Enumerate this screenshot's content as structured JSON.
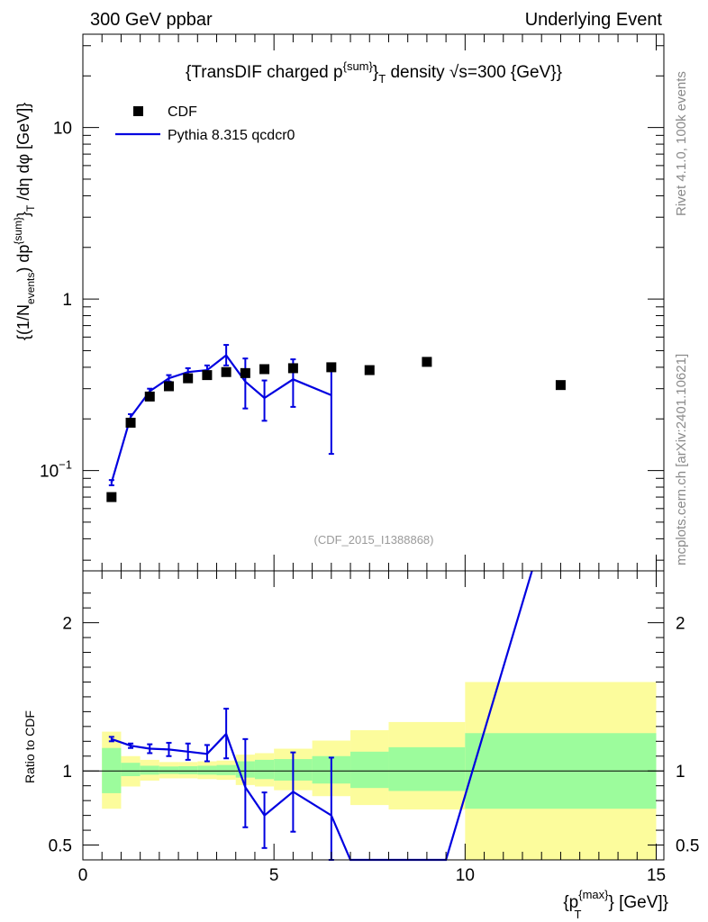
{
  "header": {
    "left": "300 GeV ppbar",
    "right": "Underlying Event"
  },
  "side_text": {
    "rivet": "Rivet 4.1.0,  100k events",
    "mcplots": "mcplots.cern.ch [arXiv:2401.10621]"
  },
  "chart_data": [
    {
      "type": "scatter",
      "title": "{TransDIF charged p^{sum}_T density √s=300 {GeV}}",
      "title_parts": {
        "pre": "{TransDIF charged p",
        "sup": "{sum}",
        "sub": "}",
        "subT": "T",
        "post": " density √s=300 {GeV}}"
      },
      "ylabel": "{(1/N_events) dp^{sum}_T /dη  dφ [GeV]}",
      "ylabel_parts": {
        "a": "{(1/N",
        "a_sub": "events",
        "b": ") dp",
        "b_sup": "{sum}",
        "c": "}",
        "c_sub": "T",
        "d": " /dη  dφ [GeV]}"
      },
      "watermark": "(CDF_2015_I1388868)",
      "yscale": "log",
      "ylim": [
        0.026,
        35
      ],
      "xlim": [
        0,
        15.2
      ],
      "y_tick_labels": [
        {
          "value": 0.1,
          "base": "10",
          "exp": "−1"
        },
        {
          "value": 1,
          "text": "1"
        },
        {
          "value": 10,
          "text": "10"
        }
      ],
      "legend": [
        {
          "label": "CDF",
          "marker": "square",
          "color": "#000000"
        },
        {
          "label": "Pythia 8.315 qcdcr0",
          "marker": "line",
          "color": "#0000e0"
        }
      ],
      "series": [
        {
          "name": "CDF",
          "color": "#000000",
          "x": [
            0.75,
            1.25,
            1.75,
            2.25,
            2.75,
            3.25,
            3.75,
            4.25,
            4.75,
            5.5,
            6.5,
            7.5,
            9.0,
            12.5
          ],
          "y": [
            0.07,
            0.19,
            0.27,
            0.31,
            0.345,
            0.36,
            0.375,
            0.37,
            0.39,
            0.395,
            0.4,
            0.385,
            0.43,
            0.315
          ]
        },
        {
          "name": "Pythia 8.315 qcdcr0",
          "color": "#0000e0",
          "x": [
            0.75,
            1.25,
            1.75,
            2.25,
            2.75,
            3.25,
            3.75,
            4.25,
            4.75,
            5.5,
            6.5
          ],
          "y": [
            0.085,
            0.205,
            0.29,
            0.345,
            0.375,
            0.385,
            0.47,
            0.33,
            0.265,
            0.34,
            0.275
          ],
          "err_low": [
            0.082,
            0.197,
            0.28,
            0.33,
            0.355,
            0.36,
            0.41,
            0.23,
            0.195,
            0.235,
            0.125
          ],
          "err_high": [
            0.088,
            0.213,
            0.3,
            0.36,
            0.395,
            0.41,
            0.54,
            0.45,
            0.335,
            0.445,
            0.41
          ]
        }
      ]
    },
    {
      "type": "line",
      "ylabel": "Ratio to CDF",
      "xlabel": "{p_T^{max}} [GeV]}",
      "xlabel_parts": {
        "a": "{p",
        "a_sup": "{max}",
        "a_sub": "T",
        "b": "} [GeV]}"
      },
      "xlim": [
        0,
        15.2
      ],
      "ylim": [
        0.4,
        2.35
      ],
      "x_ticks": [
        0,
        5,
        10,
        15
      ],
      "x_tick_labels": [
        "0",
        "5",
        "10",
        "15"
      ],
      "y_ticks": [
        0.5,
        1,
        2
      ],
      "y_tick_labels": [
        "0.5",
        "1",
        "2"
      ],
      "reference_line": 1,
      "bands": {
        "bins": [
          [
            0.5,
            1.0
          ],
          [
            1.0,
            1.5
          ],
          [
            1.5,
            2.0
          ],
          [
            2.0,
            2.5
          ],
          [
            2.5,
            3.0
          ],
          [
            3.0,
            3.5
          ],
          [
            3.5,
            4.0
          ],
          [
            4.0,
            4.5
          ],
          [
            4.5,
            5.0
          ],
          [
            5.0,
            6.0
          ],
          [
            6.0,
            7.0
          ],
          [
            7.0,
            8.0
          ],
          [
            8.0,
            10.0
          ],
          [
            10.0,
            15.0
          ]
        ],
        "inner_low": [
          0.85,
          0.965,
          0.975,
          0.98,
          0.978,
          0.975,
          0.972,
          0.955,
          0.945,
          0.935,
          0.915,
          0.885,
          0.865,
          0.745
        ],
        "inner_high": [
          1.155,
          1.055,
          1.035,
          1.03,
          1.032,
          1.035,
          1.04,
          1.065,
          1.075,
          1.08,
          1.1,
          1.13,
          1.16,
          1.255
        ],
        "outer_low": [
          0.745,
          0.895,
          0.935,
          0.95,
          0.95,
          0.945,
          0.94,
          0.905,
          0.895,
          0.87,
          0.83,
          0.77,
          0.74,
          0.335
        ],
        "outer_high": [
          1.265,
          1.1,
          1.075,
          1.06,
          1.06,
          1.065,
          1.07,
          1.11,
          1.12,
          1.15,
          1.205,
          1.275,
          1.33,
          1.6
        ],
        "inner_color": "#9cfc9c",
        "outer_color": "#fcfc9c"
      },
      "series": [
        {
          "name": "Pythia 8.315 qcdcr0 / CDF",
          "color": "#0000e0",
          "x": [
            0.75,
            1.25,
            1.75,
            2.25,
            2.75,
            3.25,
            3.75,
            4.25,
            4.75,
            5.5,
            6.5,
            7.0,
            9.5,
            11.75
          ],
          "y": [
            1.215,
            1.17,
            1.15,
            1.145,
            1.13,
            1.115,
            1.25,
            0.89,
            0.7,
            0.86,
            0.7,
            0.37,
            0.37,
            2.35
          ],
          "err_low": [
            1.2,
            1.155,
            1.12,
            1.1,
            1.075,
            1.065,
            1.085,
            0.62,
            0.48,
            0.59,
            0.3,
            null,
            null,
            null
          ],
          "err_high": [
            1.23,
            1.185,
            1.18,
            1.19,
            1.185,
            1.175,
            1.42,
            1.215,
            0.855,
            1.125,
            1.09,
            null,
            null,
            null
          ]
        }
      ]
    }
  ]
}
